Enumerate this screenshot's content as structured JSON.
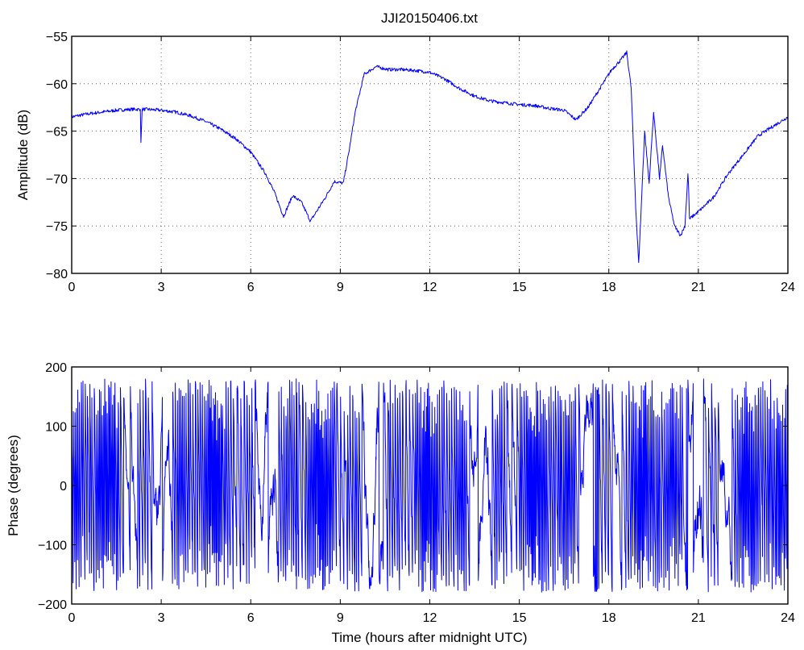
{
  "chart_data": [
    {
      "type": "line",
      "title": "JJI20150406.txt",
      "xlabel": "",
      "ylabel": "Amplitude (dB)",
      "xlim": [
        0,
        24
      ],
      "ylim": [
        -80,
        -55
      ],
      "xticks": [
        "0",
        "3",
        "6",
        "9",
        "12",
        "15",
        "18",
        "21",
        "24"
      ],
      "yticks": [
        "−55",
        "−60",
        "−65",
        "−70",
        "−75",
        "−80"
      ],
      "grid": true,
      "color": "#0000ff",
      "x": [
        0,
        0.5,
        1,
        1.5,
        2,
        2.3,
        2.32,
        2.36,
        2.5,
        3,
        3.5,
        4,
        4.5,
        5,
        5.5,
        6,
        6.5,
        6.8,
        7.1,
        7.4,
        7.7,
        8.0,
        8.2,
        8.5,
        8.8,
        9.1,
        9.3,
        9.5,
        9.8,
        10.2,
        10.6,
        11,
        11.5,
        12,
        12.5,
        13,
        13.5,
        14,
        14.5,
        15,
        15.5,
        16,
        16.5,
        16.9,
        17.3,
        17.7,
        18.1,
        18.4,
        18.6,
        18.75,
        18.9,
        19.0,
        19.2,
        19.35,
        19.5,
        19.7,
        19.8,
        20.0,
        20.2,
        20.4,
        20.55,
        20.65,
        20.68,
        20.7,
        20.8,
        21,
        21.5,
        22,
        22.5,
        23,
        23.5,
        24
      ],
      "y": [
        -63.5,
        -63.2,
        -63.0,
        -62.8,
        -62.7,
        -62.7,
        -66.2,
        -62.7,
        -62.7,
        -62.8,
        -63.0,
        -63.4,
        -64.0,
        -64.8,
        -65.8,
        -67.2,
        -69.5,
        -71.5,
        -74.0,
        -71.8,
        -72.5,
        -74.5,
        -73.5,
        -72.0,
        -70.3,
        -70.5,
        -67.0,
        -63.0,
        -59.0,
        -58.2,
        -58.5,
        -58.5,
        -58.6,
        -58.8,
        -59.5,
        -60.5,
        -61.3,
        -61.8,
        -62.0,
        -62.2,
        -62.3,
        -62.6,
        -62.8,
        -63.8,
        -62.5,
        -60.5,
        -58.5,
        -57.5,
        -56.7,
        -60.5,
        -73.0,
        -79.0,
        -65.0,
        -70.5,
        -63.0,
        -70.0,
        -66.5,
        -72.0,
        -75.0,
        -76.0,
        -75.0,
        -69.5,
        -71.5,
        -74.3,
        -74.0,
        -73.5,
        -72.0,
        -69.5,
        -67.5,
        -65.5,
        -64.5,
        -63.5
      ]
    },
    {
      "type": "line",
      "title": "",
      "xlabel": "Time (hours after midnight UTC)",
      "ylabel": "Phase (degrees)",
      "xlim": [
        0,
        24
      ],
      "ylim": [
        -200,
        200
      ],
      "xticks": [
        "0",
        "3",
        "6",
        "9",
        "12",
        "15",
        "18",
        "21",
        "24"
      ],
      "yticks": [
        "200",
        "100",
        "0",
        "−100",
        "−200"
      ],
      "grid": false,
      "color": "#0000ff",
      "wrap_range": [
        -180,
        180
      ]
    }
  ]
}
